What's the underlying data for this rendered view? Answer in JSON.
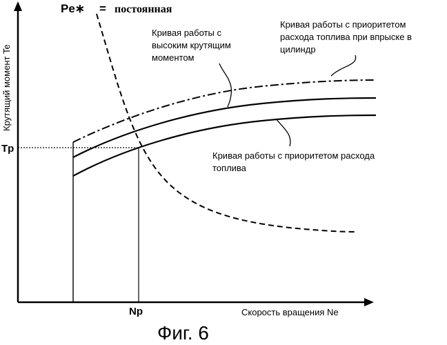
{
  "top_label": {
    "symbol": "Pe∗",
    "equals": "=",
    "text": "постоянная"
  },
  "y_axis_label": "Крутящий момент Te",
  "x_axis_label": "Скорость вращения Ne",
  "tick_tp": "Tp",
  "tick_np": "Np",
  "label_high_torque": [
    "Кривая работы с",
    "высоким крутящим",
    "моментом"
  ],
  "label_injection": [
    "Кривая работы с приоритетом",
    "расхода топлива при впрыске в",
    "цилиндр"
  ],
  "label_fuel_priority": [
    "Кривая работы с приоритетом расхода",
    "топлива"
  ],
  "figure_caption": "Фиг. 6"
}
